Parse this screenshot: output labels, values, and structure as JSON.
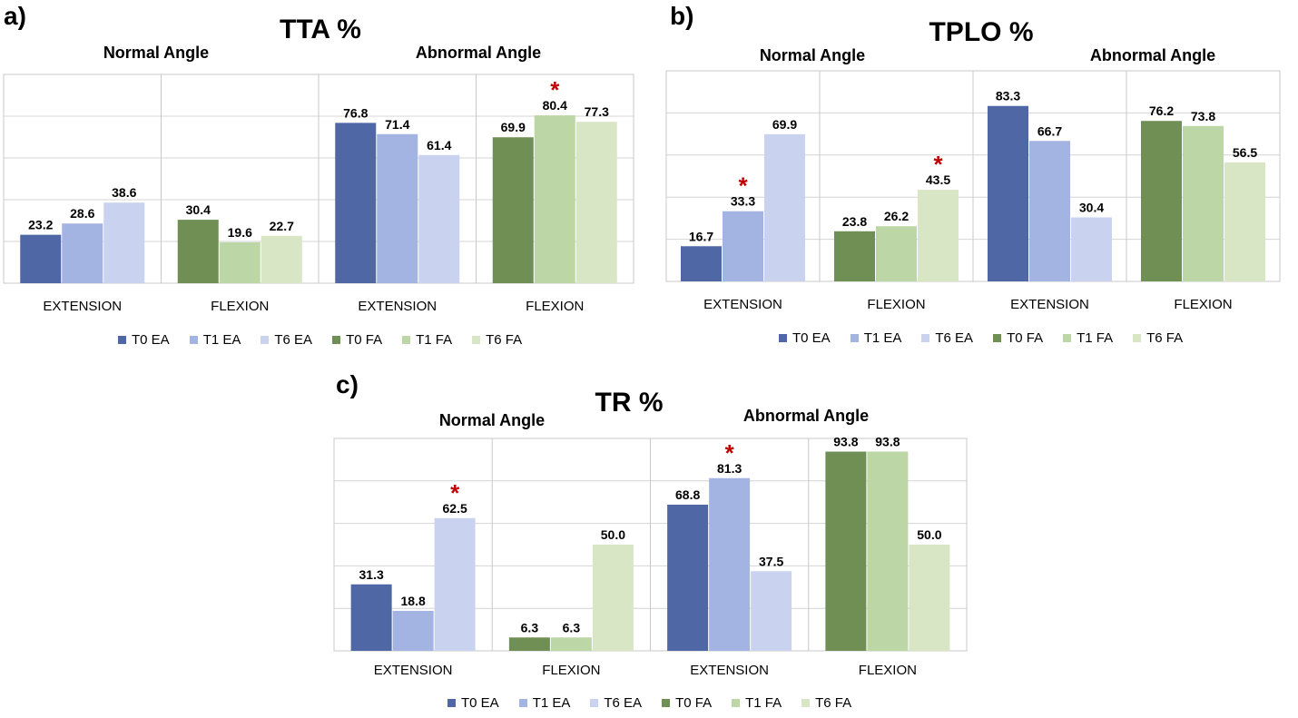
{
  "legend": [
    {
      "label": "T0 EA",
      "color": "#4f67a5"
    },
    {
      "label": "T1 EA",
      "color": "#a3b4e2"
    },
    {
      "label": "T6 EA",
      "color": "#c9d3ef"
    },
    {
      "label": "T0 FA",
      "color": "#6f8f55"
    },
    {
      "label": "T1 FA",
      "color": "#bdd6a5"
    },
    {
      "label": "T6 FA",
      "color": "#d8e6c6"
    }
  ],
  "chart_data": [
    {
      "type": "bar",
      "panel": "a)",
      "title": "TTA %",
      "group_labels": [
        "Normal Angle",
        "Abnormal Angle"
      ],
      "categories": [
        "EXTENSION",
        "FLEXION",
        "EXTENSION",
        "FLEXION"
      ],
      "ylim": [
        0,
        100
      ],
      "grid": true,
      "legend_position": "bottom",
      "values": [
        [
          23.2,
          28.6,
          38.6
        ],
        [
          30.4,
          19.6,
          22.7
        ],
        [
          76.8,
          71.4,
          61.4
        ],
        [
          69.9,
          80.4,
          77.3
        ]
      ],
      "value_labels": [
        [
          "23.2",
          "28.6",
          "38.6"
        ],
        [
          "30.4",
          "19.6",
          "22.7"
        ],
        [
          "76.8",
          "71.4",
          "61.4"
        ],
        [
          "69.9",
          "80.4",
          "77.3"
        ]
      ],
      "significant": [
        [
          3,
          1
        ]
      ]
    },
    {
      "type": "bar",
      "panel": "b)",
      "title": "TPLO %",
      "group_labels": [
        "Normal Angle",
        "Abnormal Angle"
      ],
      "categories": [
        "EXTENSION",
        "FLEXION",
        "EXTENSION",
        "FLEXION"
      ],
      "ylim": [
        0,
        100
      ],
      "grid": true,
      "legend_position": "bottom",
      "values": [
        [
          16.7,
          33.3,
          69.9
        ],
        [
          23.8,
          26.2,
          43.5
        ],
        [
          83.3,
          66.7,
          30.4
        ],
        [
          76.2,
          73.8,
          56.5
        ]
      ],
      "value_labels": [
        [
          "16.7",
          "33.3",
          "69.9"
        ],
        [
          "23.8",
          "26.2",
          "43.5"
        ],
        [
          "83.3",
          "66.7",
          "30.4"
        ],
        [
          "76.2",
          "73.8",
          "56.5"
        ]
      ],
      "significant": [
        [
          0,
          1
        ],
        [
          1,
          2
        ]
      ]
    },
    {
      "type": "bar",
      "panel": "c)",
      "title": "TR %",
      "group_labels": [
        "Normal Angle",
        "Abnormal Angle"
      ],
      "categories": [
        "EXTENSION",
        "FLEXION",
        "EXTENSION",
        "FLEXION"
      ],
      "ylim": [
        0,
        100
      ],
      "grid": true,
      "legend_position": "bottom",
      "values": [
        [
          31.3,
          18.8,
          62.5
        ],
        [
          6.3,
          6.3,
          50.0
        ],
        [
          68.8,
          81.3,
          37.5
        ],
        [
          93.8,
          93.8,
          50.0
        ]
      ],
      "value_labels": [
        [
          "31.3",
          "18.8",
          "62.5"
        ],
        [
          "6.3",
          "6.3",
          "50.0"
        ],
        [
          "68.8",
          "81.3",
          "37.5"
        ],
        [
          "93.8",
          "93.8",
          "50.0"
        ]
      ],
      "significant": [
        [
          0,
          2
        ],
        [
          2,
          1
        ]
      ]
    }
  ]
}
